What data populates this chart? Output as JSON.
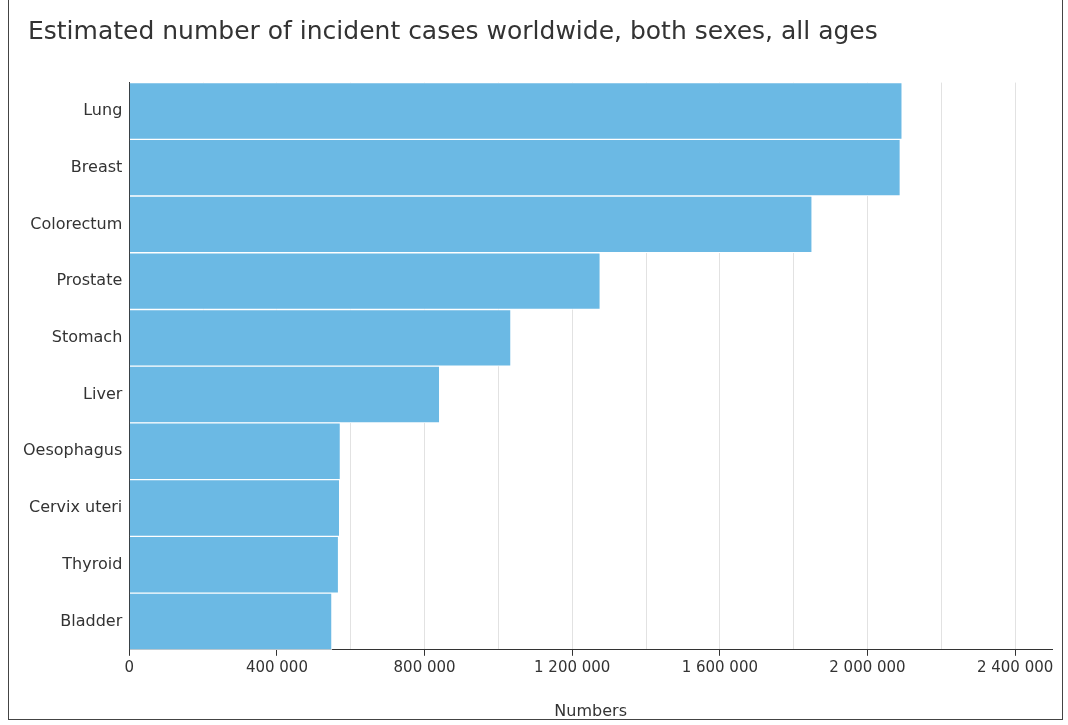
{
  "chart_data": {
    "type": "bar",
    "orientation": "horizontal",
    "title": "Estimated number of incident cases worldwide, both sexes, all ages",
    "xlabel": "Numbers",
    "categories": [
      "Lung",
      "Breast",
      "Colorectum",
      "Prostate",
      "Stomach",
      "Liver",
      "Oesophagus",
      "Cervix uteri",
      "Thyroid",
      "Bladder"
    ],
    "values": [
      2094000,
      2089000,
      1850000,
      1276000,
      1034000,
      841000,
      572000,
      570000,
      567000,
      549000
    ],
    "color": "#6bb9e4",
    "xlim": [
      0,
      2500000
    ],
    "xticks": [
      0,
      {
        "value": 200000,
        "label": null
      },
      {
        "value": 400000,
        "label": "400 000"
      },
      {
        "value": 600000,
        "label": null
      },
      {
        "value": 800000,
        "label": "800 000"
      },
      {
        "value": 1000000,
        "label": null
      },
      {
        "value": 1200000,
        "label": "1 200 000"
      },
      {
        "value": 1400000,
        "label": null
      },
      {
        "value": 1600000,
        "label": "1 600 000"
      },
      {
        "value": 1800000,
        "label": null
      },
      {
        "value": 2000000,
        "label": "2 000 000"
      },
      {
        "value": 2200000,
        "label": null
      },
      {
        "value": 2400000,
        "label": "2 400 000"
      }
    ],
    "grid": "x"
  }
}
